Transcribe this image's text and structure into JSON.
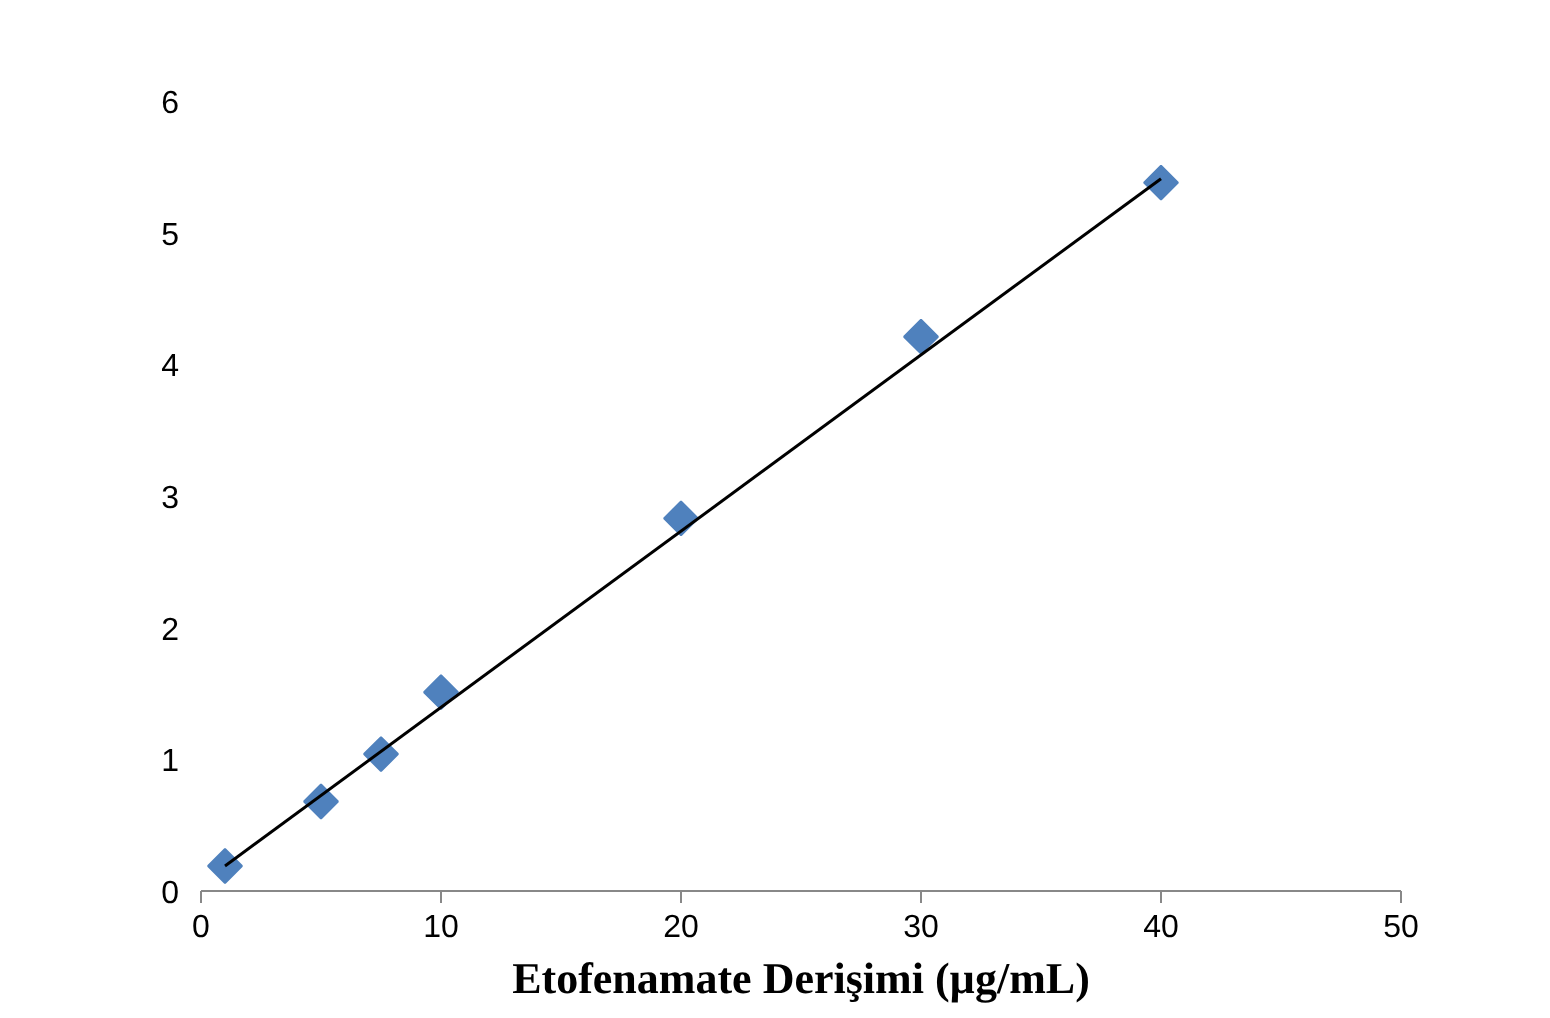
{
  "chart_data": {
    "type": "scatter",
    "xlabel": "Etofenamate Derişimi (µg/mL)",
    "xlim": [
      0,
      50
    ],
    "xticks": [
      0,
      10,
      20,
      30,
      40,
      50
    ],
    "ylim": [
      0,
      6
    ],
    "yticks": [
      0,
      1,
      2,
      3,
      4,
      5,
      6
    ],
    "grid": false,
    "series": [
      {
        "marker": "diamond",
        "color": "#4f81bd",
        "x": [
          1,
          5,
          7.5,
          10,
          20,
          30,
          40
        ],
        "values": [
          0.19,
          0.68,
          1.04,
          1.51,
          2.83,
          4.21,
          5.38
        ]
      },
      {
        "type": "line",
        "marker": "none",
        "color": "#000000",
        "x": [
          1,
          40
        ],
        "values": [
          0.19,
          5.41
        ]
      }
    ]
  }
}
